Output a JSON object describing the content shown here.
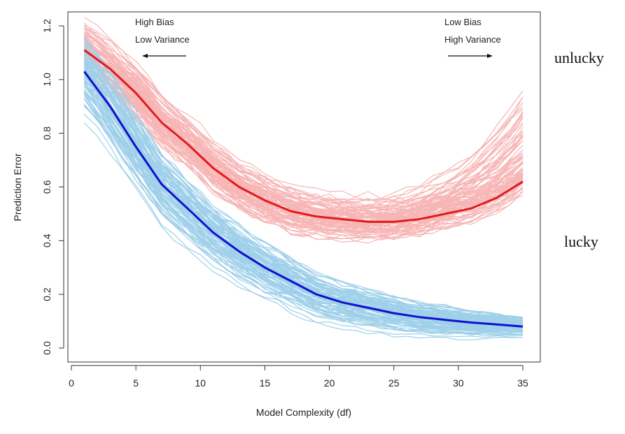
{
  "chart_data": {
    "type": "line",
    "title": "",
    "xlabel": "Model Complexity (df)",
    "ylabel": "Prediction Error",
    "xlim": [
      1,
      35
    ],
    "ylim": [
      0.0,
      1.2
    ],
    "x_ticks": [
      0,
      5,
      10,
      15,
      20,
      25,
      30,
      35
    ],
    "y_ticks": [
      "0.0",
      "0.2",
      "0.4",
      "0.6",
      "0.8",
      "1.0",
      "1.2"
    ],
    "x": [
      1,
      3,
      5,
      7,
      9,
      11,
      13,
      15,
      17,
      19,
      21,
      23,
      25,
      27,
      29,
      31,
      33,
      35
    ],
    "series": [
      {
        "color": "#e31a1c",
        "values": [
          1.11,
          1.04,
          0.95,
          0.84,
          0.76,
          0.67,
          0.6,
          0.55,
          0.51,
          0.49,
          0.48,
          0.47,
          0.47,
          0.48,
          0.5,
          0.52,
          0.56,
          0.62
        ]
      },
      {
        "color": "#1010d0",
        "values": [
          1.03,
          0.9,
          0.75,
          0.61,
          0.52,
          0.43,
          0.36,
          0.3,
          0.25,
          0.2,
          0.17,
          0.15,
          0.13,
          0.115,
          0.105,
          0.095,
          0.088,
          0.08
        ]
      }
    ],
    "annotations": {
      "left_line1": "High Bias",
      "left_line2": "Low Variance",
      "right_line1": "Low Bias",
      "right_line2": "High Variance"
    },
    "side_labels": {
      "top": "unlucky",
      "bottom": "lucky"
    },
    "colors": {
      "test_thin": "#f7b6b6",
      "train_thin": "#9fd0ea",
      "test_mean": "#e31a1c",
      "train_mean": "#1010d0"
    },
    "grid": false
  }
}
